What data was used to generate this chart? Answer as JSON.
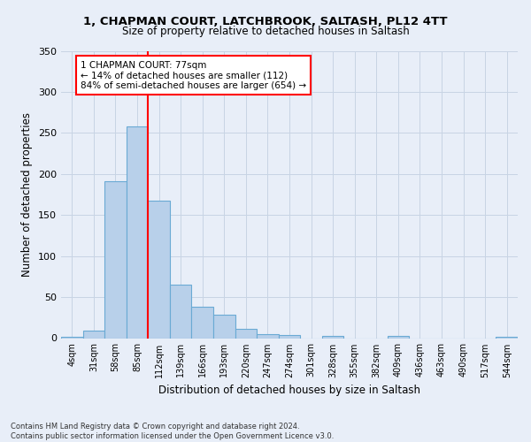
{
  "title_line1": "1, CHAPMAN COURT, LATCHBROOK, SALTASH, PL12 4TT",
  "title_line2": "Size of property relative to detached houses in Saltash",
  "xlabel": "Distribution of detached houses by size in Saltash",
  "ylabel": "Number of detached properties",
  "footnote": "Contains HM Land Registry data © Crown copyright and database right 2024.\nContains public sector information licensed under the Open Government Licence v3.0.",
  "bin_labels": [
    "4sqm",
    "31sqm",
    "58sqm",
    "85sqm",
    "112sqm",
    "139sqm",
    "166sqm",
    "193sqm",
    "220sqm",
    "247sqm",
    "274sqm",
    "301sqm",
    "328sqm",
    "355sqm",
    "382sqm",
    "409sqm",
    "436sqm",
    "463sqm",
    "490sqm",
    "517sqm",
    "544sqm"
  ],
  "bar_heights": [
    2,
    9,
    191,
    258,
    168,
    65,
    38,
    29,
    11,
    5,
    4,
    0,
    3,
    0,
    0,
    3,
    0,
    0,
    0,
    0,
    2
  ],
  "bar_color": "#b8d0ea",
  "bar_edge_color": "#6aaad4",
  "grid_color": "#c8d4e4",
  "bg_color": "#e8eef8",
  "red_line_x": 3.5,
  "annotation_text": "1 CHAPMAN COURT: 77sqm\n← 14% of detached houses are smaller (112)\n84% of semi-detached houses are larger (654) →",
  "annotation_box_color": "white",
  "annotation_box_edge": "red",
  "ylim": [
    0,
    350
  ],
  "yticks": [
    0,
    50,
    100,
    150,
    200,
    250,
    300,
    350
  ]
}
